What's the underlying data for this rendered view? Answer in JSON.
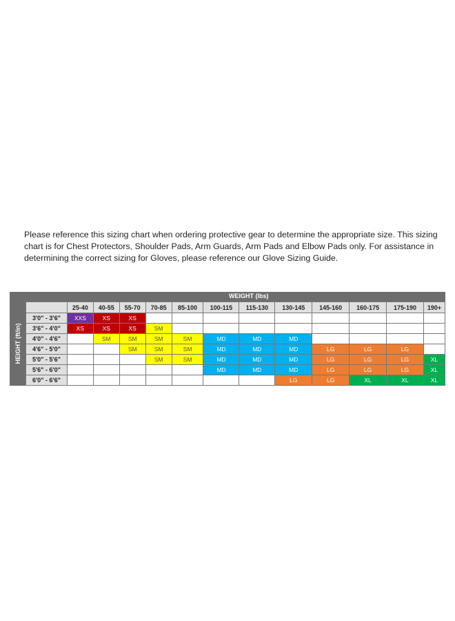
{
  "intro_text": "Please reference this sizing chart when ordering protective gear to determine the appropriate size. This sizing chart is for Chest Protectors, Shoulder Pads, Arm Guards, Arm Pads and Elbow Pads only. For assistance in determining the correct sizing for Gloves, please reference our Glove Sizing Guide.",
  "chart_data": {
    "type": "table",
    "column_group_label": "WEIGHT (lbs)",
    "row_group_label": "HEIGHT (ft/in)",
    "columns": [
      "25-40",
      "40-55",
      "55-70",
      "70-85",
      "85-100",
      "100-115",
      "115-130",
      "130-145",
      "145-160",
      "160-175",
      "175-190",
      "190+"
    ],
    "rows": [
      {
        "label": "3'0\" - 3'6\"",
        "cells": [
          "XXS",
          "XS",
          "XS",
          "",
          "",
          "",
          "",
          "",
          "",
          "",
          "",
          ""
        ]
      },
      {
        "label": "3'6\" - 4'0\"",
        "cells": [
          "XS",
          "XS",
          "XS",
          "SM",
          "",
          "",
          "",
          "",
          "",
          "",
          "",
          ""
        ]
      },
      {
        "label": "4'0\" - 4'6\"",
        "cells": [
          "",
          "SM",
          "SM",
          "SM",
          "SM",
          "MD",
          "MD",
          "MD",
          "",
          "",
          "",
          ""
        ]
      },
      {
        "label": "4'6\" - 5'0\"",
        "cells": [
          "",
          "",
          "SM",
          "SM",
          "SM",
          "MD",
          "MD",
          "MD",
          "LG",
          "LG",
          "LG",
          ""
        ]
      },
      {
        "label": "5'0\" - 5'6\"",
        "cells": [
          "",
          "",
          "",
          "SM",
          "SM",
          "MD",
          "MD",
          "MD",
          "LG",
          "LG",
          "LG",
          "XL"
        ]
      },
      {
        "label": "5'6\" - 6'0\"",
        "cells": [
          "",
          "",
          "",
          "",
          "",
          "MD",
          "MD",
          "MD",
          "LG",
          "LG",
          "LG",
          "XL"
        ]
      },
      {
        "label": "6'0\" - 6'6\"",
        "cells": [
          "",
          "",
          "",
          "",
          "",
          "",
          "",
          "LG",
          "LG",
          "XL",
          "XL",
          "XL"
        ]
      }
    ],
    "size_colors": {
      "XXS": "#7030a0",
      "XS": "#c00000",
      "SM": "#ffff00",
      "MD": "#00b0f0",
      "LG": "#ed7d31",
      "XL": "#00b050"
    },
    "size_text_colors": {
      "XXS": "#ffffff",
      "XS": "#ffffff",
      "SM": "#555555",
      "MD": "#ffffff",
      "LG": "#ffffff",
      "XL": "#ffffff"
    }
  }
}
